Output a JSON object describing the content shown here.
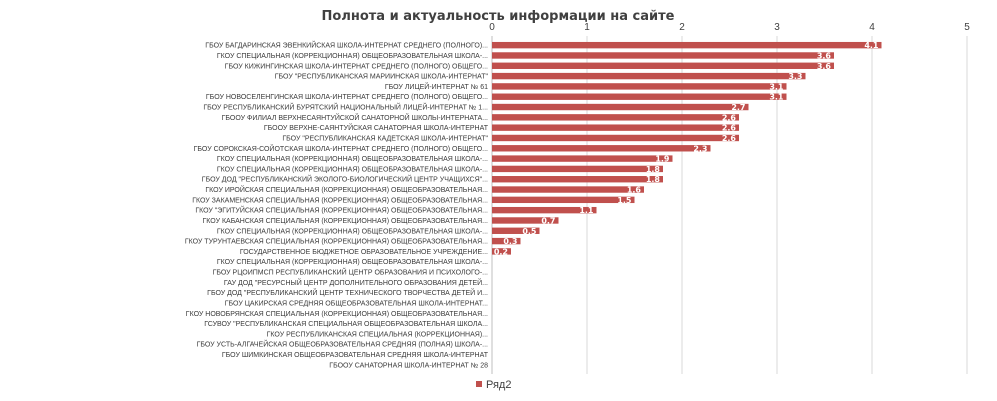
{
  "chart_data": {
    "type": "bar",
    "orientation": "horizontal",
    "title": "Полнота и актуальность  информации на сайте",
    "xlim": [
      0,
      5
    ],
    "ticks": [
      "0",
      "1",
      "2",
      "3",
      "4",
      "5"
    ],
    "grid": true,
    "legend_position": "bottom",
    "bar_color": "#c0504d",
    "categories": [
      "ГБОУ БАГДАРИНСКАЯ ЭВЕНКИЙСКАЯ ШКОЛА-ИНТЕРНАТ СРЕДНЕГО (ПОЛНОГО)...",
      "ГКОУ СПЕЦИАЛЬНАЯ (КОРРЕКЦИОННАЯ) ОБЩЕОБРАЗОВАТЕЛЬНАЯ ШКОЛА-...",
      "ГБОУ КИЖИНГИНСКАЯ ШКОЛА-ИНТЕРНАТ СРЕДНЕГО (ПОЛНОГО) ОБЩЕГО...",
      "ГБОУ \"РЕСПУБЛИКАНСКАЯ МАРИИНСКАЯ ШКОЛА-ИНТЕРНАТ\"",
      "ГБОУ ЛИЦЕЙ-ИНТЕРНАТ № 61",
      "ГБОУ НОВОСЕЛЕНГИНСКАЯ ШКОЛА-ИНТЕРНАТ СРЕДНЕГО (ПОЛНОГО) ОБЩЕГО...",
      "ГБОУ РЕСПУБЛИКАНСКИЙ БУРЯТСКИЙ НАЦИОНАЛЬНЫЙ ЛИЦЕЙ-ИНТЕРНАТ № 1...",
      "ГБООУ ФИЛИАЛ ВЕРХНЕСАЯНТУЙСКОЙ САНАТОРНОЙ ШКОЛЫ-ИНТЕРНАТА...",
      "ГБООУ ВЕРХНЕ-САЯНТУЙСКАЯ САНАТОРНАЯ ШКОЛА-ИНТЕРНАТ",
      "ГБОУ \"РЕСПУБЛИКАНСКАЯ КАДЕТСКАЯ ШКОЛА-ИНТЕРНАТ\"",
      "ГБОУ СОРОКСКАЯ-СОЙОТСКАЯ ШКОЛА-ИНТЕРНАТ СРЕДНЕГО (ПОЛНОГО) ОБЩЕГО...",
      "ГКОУ СПЕЦИАЛЬНАЯ (КОРРЕКЦИОННАЯ) ОБЩЕОБРАЗОВАТЕЛЬНАЯ ШКОЛА-...",
      "ГКОУ СПЕЦИАЛЬНАЯ (КОРРЕКЦИОННАЯ) ОБЩЕОБРАЗОВАТЕЛЬНАЯ ШКОЛА-...",
      "ГБОУ ДОД \"РЕСПУБЛИКАНСКИЙ ЭКОЛОГО-БИОЛОГИЧЕСКИЙ ЦЕНТР УЧАЩИХСЯ\"...",
      "ГКОУ ИРОЙСКАЯ СПЕЦИАЛЬНАЯ (КОРРЕКЦИОННАЯ) ОБЩЕОБРАЗОВАТЕЛЬНАЯ...",
      "ГКОУ ЗАКАМЕНСКАЯ СПЕЦИАЛЬНАЯ (КОРРЕКЦИОННАЯ) ОБЩЕОБРАЗОВАТЕЛЬНАЯ...",
      "ГКОУ \"ЭГИТУЙСКАЯ СПЕЦИАЛЬНАЯ (КОРРЕКЦИОННАЯ) ОБЩЕОБРАЗОВАТЕЛЬНАЯ...",
      "ГКОУ КАБАНСКАЯ СПЕЦИАЛЬНАЯ (КОРРЕКЦИОННАЯ) ОБЩЕОБРАЗОВАТЕЛЬНАЯ...",
      "ГКОУ СПЕЦИАЛЬНАЯ (КОРРЕКЦИОННАЯ) ОБЩЕОБРАЗОВАТЕЛЬНАЯ ШКОЛА-...",
      "ГКОУ ТУРУНТАЕВСКАЯ СПЕЦИАЛЬНАЯ (КОРРЕКЦИОННАЯ) ОБЩЕОБРАЗОВАТЕЛЬНАЯ...",
      "ГОСУДАРСТВЕННОЕ БЮДЖЕТНОЕ ОБРАЗОВАТЕЛЬНОЕ УЧРЕЖДЕНИЕ...",
      "ГКОУ СПЕЦИАЛЬНАЯ (КОРРЕКЦИОННАЯ) ОБЩЕОБРАЗОВАТЕЛЬНАЯ ШКОЛА-...",
      "ГБОУ РЦОИПМСП РЕСПУБЛИКАНСКИЙ ЦЕНТР ОБРАЗОВАНИЯ И ПСИХОЛОГО-...",
      "ГАУ ДОД \"РЕСУРСНЫЙ ЦЕНТР ДОПОЛНИТЕЛЬНОГО ОБРАЗОВАНИЯ ДЕТЕЙ...",
      "ГБОУ ДОД \"РЕСПУБЛИКАНСКИЙ ЦЕНТР ТЕХНИЧЕСКОГО ТВОРЧЕСТВА ДЕТЕЙ И...",
      "ГБОУ ЦАКИРСКАЯ СРЕДНЯЯ ОБЩЕОБРАЗОВАТЕЛЬНАЯ ШКОЛА-ИНТЕРНАТ...",
      "ГКОУ НОВОБРЯНСКАЯ СПЕЦИАЛЬНАЯ (КОРРЕКЦИОННАЯ) ОБЩЕОБРАЗОВАТЕЛЬНАЯ...",
      "ГСУВОУ \"РЕСПУБЛИКАНСКАЯ СПЕЦИАЛЬНАЯ ОБЩЕОБРАЗОВАТЕЛЬНАЯ ШКОЛА...",
      "ГКОУ РЕСПУБЛИКАНСКАЯ СПЕЦИАЛЬНАЯ (КОРРЕКЦИОННАЯ)...",
      "ГБОУ УСТЬ-АЛГАЧЕЙСКАЯ ОБЩЕОБРАЗОВАТЕЛЬНАЯ СРЕДНЯЯ (ПОЛНАЯ) ШКОЛА-...",
      "ГБОУ ШИМКИНСКАЯ ОБЩЕОБРАЗОВАТЕЛЬНАЯ СРЕДНЯЯ ШКОЛА-ИНТЕРНАТ",
      "ГБООУ САНАТОРНАЯ ШКОЛА-ИНТЕРНАТ № 28"
    ],
    "series": [
      {
        "name": "Ряд2",
        "values": [
          4.1,
          3.6,
          3.6,
          3.3,
          3.1,
          3.1,
          2.7,
          2.6,
          2.6,
          2.6,
          2.3,
          1.9,
          1.8,
          1.8,
          1.6,
          1.5,
          1.1,
          0.7,
          0.5,
          0.3,
          0.2,
          0,
          0,
          0,
          0,
          0,
          0,
          0,
          0,
          0,
          0,
          0
        ],
        "labels": [
          "4.1",
          "3.6",
          "3.6",
          "3.3",
          "3.1",
          "3.1",
          "2.7",
          "2.6",
          "2.6",
          "2.6",
          "2.3",
          "1.9",
          "1.8",
          "1.8",
          "1.6",
          "1.5",
          "1.1",
          "0.7",
          "0.5",
          "0.3",
          "0.2",
          "0",
          "0",
          "0",
          "0",
          "0",
          "0",
          "0",
          "0",
          "0",
          "0",
          "0"
        ]
      }
    ]
  }
}
